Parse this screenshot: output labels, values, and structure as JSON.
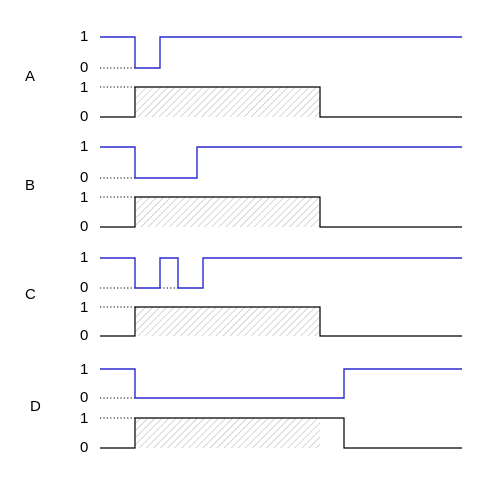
{
  "panels": [
    {
      "label": "A",
      "top_signal": {
        "high_label": "1",
        "low_label": "0"
      },
      "bottom_signal": {
        "high_label": "1",
        "low_label": "0"
      }
    },
    {
      "label": "B",
      "top_signal": {
        "high_label": "1",
        "low_label": "0"
      },
      "bottom_signal": {
        "high_label": "1",
        "low_label": "0"
      }
    },
    {
      "label": "C",
      "top_signal": {
        "high_label": "1",
        "low_label": "0"
      },
      "bottom_signal": {
        "high_label": "1",
        "low_label": "0"
      }
    },
    {
      "label": "D",
      "top_signal": {
        "high_label": "1",
        "low_label": "0"
      },
      "bottom_signal": {
        "high_label": "1",
        "low_label": "0"
      }
    }
  ],
  "colors": {
    "top_signal": "#2a2ad0",
    "bottom_signal": "#000000",
    "hatch": "#9a9a9a"
  }
}
